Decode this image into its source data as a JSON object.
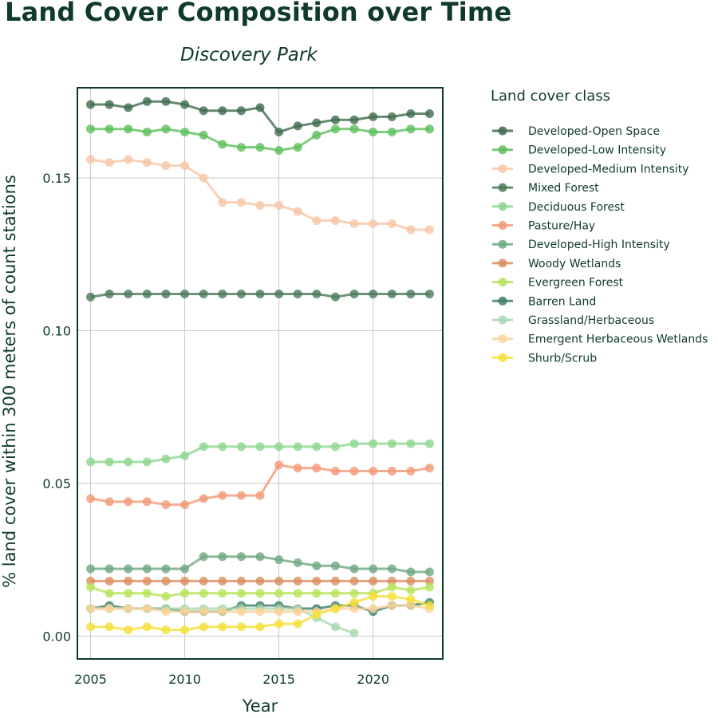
{
  "chart_data": {
    "type": "line",
    "title": "Land Cover Composition over Time",
    "subtitle": "Discovery Park",
    "xlabel": "Year",
    "ylabel": "% land cover within 300 meters of count stations",
    "xlim": [
      2004.3,
      2023.7
    ],
    "ylim": [
      -0.0075,
      0.1795
    ],
    "xticks": [
      2005,
      2010,
      2015,
      2020
    ],
    "yticks": [
      0.0,
      0.05,
      0.1,
      0.15
    ],
    "ytick_labels": [
      "0.00",
      "0.05",
      "0.10",
      "0.15"
    ],
    "grid": true,
    "legend_title": "Land cover class",
    "legend_position": "right",
    "series": [
      {
        "name": "Developed-Open Space",
        "color": "#3f6b4e",
        "x": [
          2005,
          2006,
          2007,
          2008,
          2009,
          2010,
          2011,
          2012,
          2013,
          2014,
          2015,
          2016,
          2017,
          2018,
          2019,
          2020,
          2021,
          2022,
          2023
        ],
        "y": [
          0.174,
          0.174,
          0.173,
          0.175,
          0.175,
          0.174,
          0.172,
          0.172,
          0.172,
          0.173,
          0.165,
          0.167,
          0.168,
          0.169,
          0.169,
          0.17,
          0.17,
          0.171,
          0.171
        ]
      },
      {
        "name": "Developed-Low Intensity",
        "color": "#5cbf5c",
        "x": [
          2005,
          2006,
          2007,
          2008,
          2009,
          2010,
          2011,
          2012,
          2013,
          2014,
          2015,
          2016,
          2017,
          2018,
          2019,
          2020,
          2021,
          2022,
          2023
        ],
        "y": [
          0.166,
          0.166,
          0.166,
          0.165,
          0.166,
          0.165,
          0.164,
          0.161,
          0.16,
          0.16,
          0.159,
          0.16,
          0.164,
          0.166,
          0.166,
          0.165,
          0.165,
          0.166,
          0.166
        ]
      },
      {
        "name": "Developed-Medium Intensity",
        "color": "#f7c6a6",
        "x": [
          2005,
          2006,
          2007,
          2008,
          2009,
          2010,
          2011,
          2012,
          2013,
          2014,
          2015,
          2016,
          2017,
          2018,
          2019,
          2020,
          2021,
          2022,
          2023
        ],
        "y": [
          0.156,
          0.155,
          0.156,
          0.155,
          0.154,
          0.154,
          0.15,
          0.142,
          0.142,
          0.141,
          0.141,
          0.139,
          0.136,
          0.136,
          0.135,
          0.135,
          0.135,
          0.133,
          0.133
        ]
      },
      {
        "name": "Mixed Forest",
        "color": "#4a7a5a",
        "x": [
          2005,
          2006,
          2007,
          2008,
          2009,
          2010,
          2011,
          2012,
          2013,
          2014,
          2015,
          2016,
          2017,
          2018,
          2019,
          2020,
          2021,
          2022,
          2023
        ],
        "y": [
          0.111,
          0.112,
          0.112,
          0.112,
          0.112,
          0.112,
          0.112,
          0.112,
          0.112,
          0.112,
          0.112,
          0.112,
          0.112,
          0.111,
          0.112,
          0.112,
          0.112,
          0.112,
          0.112
        ]
      },
      {
        "name": "Deciduous Forest",
        "color": "#8ed68e",
        "x": [
          2005,
          2006,
          2007,
          2008,
          2009,
          2010,
          2011,
          2012,
          2013,
          2014,
          2015,
          2016,
          2017,
          2018,
          2019,
          2020,
          2021,
          2022,
          2023
        ],
        "y": [
          0.057,
          0.057,
          0.057,
          0.057,
          0.058,
          0.059,
          0.062,
          0.062,
          0.062,
          0.062,
          0.062,
          0.062,
          0.062,
          0.062,
          0.063,
          0.063,
          0.063,
          0.063,
          0.063
        ]
      },
      {
        "name": "Pasture/Hay",
        "color": "#f29a78",
        "x": [
          2005,
          2006,
          2007,
          2008,
          2009,
          2010,
          2011,
          2012,
          2013,
          2014,
          2015,
          2016,
          2017,
          2018,
          2019,
          2020,
          2021,
          2022,
          2023
        ],
        "y": [
          0.045,
          0.044,
          0.044,
          0.044,
          0.043,
          0.043,
          0.045,
          0.046,
          0.046,
          0.046,
          0.056,
          0.055,
          0.055,
          0.054,
          0.054,
          0.054,
          0.054,
          0.054,
          0.055
        ]
      },
      {
        "name": "Developed-High Intensity",
        "color": "#6fa882",
        "x": [
          2005,
          2006,
          2007,
          2008,
          2009,
          2010,
          2011,
          2012,
          2013,
          2014,
          2015,
          2016,
          2017,
          2018,
          2019,
          2020,
          2021,
          2022,
          2023
        ],
        "y": [
          0.022,
          0.022,
          0.022,
          0.022,
          0.022,
          0.022,
          0.026,
          0.026,
          0.026,
          0.026,
          0.025,
          0.024,
          0.023,
          0.023,
          0.022,
          0.022,
          0.022,
          0.021,
          0.021
        ]
      },
      {
        "name": "Woody Wetlands",
        "color": "#d98e62",
        "x": [
          2005,
          2006,
          2007,
          2008,
          2009,
          2010,
          2011,
          2012,
          2013,
          2014,
          2015,
          2016,
          2017,
          2018,
          2019,
          2020,
          2021,
          2022,
          2023
        ],
        "y": [
          0.018,
          0.018,
          0.018,
          0.018,
          0.018,
          0.018,
          0.018,
          0.018,
          0.018,
          0.018,
          0.018,
          0.018,
          0.018,
          0.018,
          0.018,
          0.018,
          0.018,
          0.018,
          0.018
        ]
      },
      {
        "name": "Evergreen Forest",
        "color": "#b6e35a",
        "x": [
          2005,
          2006,
          2007,
          2008,
          2009,
          2010,
          2011,
          2012,
          2013,
          2014,
          2015,
          2016,
          2017,
          2018,
          2019,
          2020,
          2021,
          2022,
          2023
        ],
        "y": [
          0.016,
          0.014,
          0.014,
          0.014,
          0.013,
          0.014,
          0.014,
          0.014,
          0.014,
          0.014,
          0.014,
          0.014,
          0.014,
          0.014,
          0.014,
          0.014,
          0.016,
          0.015,
          0.016
        ]
      },
      {
        "name": "Barren Land",
        "color": "#3f7f68",
        "x": [
          2005,
          2006,
          2007,
          2008,
          2009,
          2010,
          2011,
          2012,
          2013,
          2014,
          2015,
          2016,
          2017,
          2018,
          2019,
          2020,
          2021,
          2022,
          2023
        ],
        "y": [
          0.009,
          0.01,
          0.009,
          0.009,
          0.009,
          0.008,
          0.008,
          0.008,
          0.01,
          0.01,
          0.01,
          0.009,
          0.009,
          0.01,
          0.01,
          0.008,
          0.01,
          0.01,
          0.011
        ]
      },
      {
        "name": "Grassland/Herbaceous",
        "color": "#a8d9b0",
        "x": [
          2005,
          2006,
          2007,
          2008,
          2009,
          2010,
          2011,
          2012,
          2013,
          2014,
          2015,
          2016,
          2017,
          2018,
          2019
        ],
        "y": [
          0.009,
          0.009,
          0.009,
          0.009,
          0.009,
          0.009,
          0.009,
          0.009,
          0.009,
          0.009,
          0.009,
          0.009,
          0.006,
          0.003,
          0.001
        ]
      },
      {
        "name": "Emergent Herbaceous Wetlands",
        "color": "#fbd39b",
        "x": [
          2005,
          2006,
          2007,
          2008,
          2009,
          2010,
          2011,
          2012,
          2013,
          2014,
          2015,
          2016,
          2017,
          2018,
          2019,
          2020,
          2021,
          2022,
          2023
        ],
        "y": [
          0.009,
          0.009,
          0.009,
          0.009,
          0.008,
          0.008,
          0.008,
          0.008,
          0.008,
          0.008,
          0.008,
          0.008,
          0.008,
          0.009,
          0.009,
          0.009,
          0.01,
          0.01,
          0.009
        ]
      },
      {
        "name": "Shurb/Scrub",
        "color": "#f5e03a",
        "x": [
          2005,
          2006,
          2007,
          2008,
          2009,
          2010,
          2011,
          2012,
          2013,
          2014,
          2015,
          2016,
          2017,
          2018,
          2019,
          2020,
          2021,
          2022,
          2023
        ],
        "y": [
          0.003,
          0.003,
          0.002,
          0.003,
          0.002,
          0.002,
          0.003,
          0.003,
          0.003,
          0.003,
          0.004,
          0.004,
          0.007,
          0.009,
          0.011,
          0.013,
          0.013,
          0.012,
          0.01
        ]
      }
    ]
  }
}
